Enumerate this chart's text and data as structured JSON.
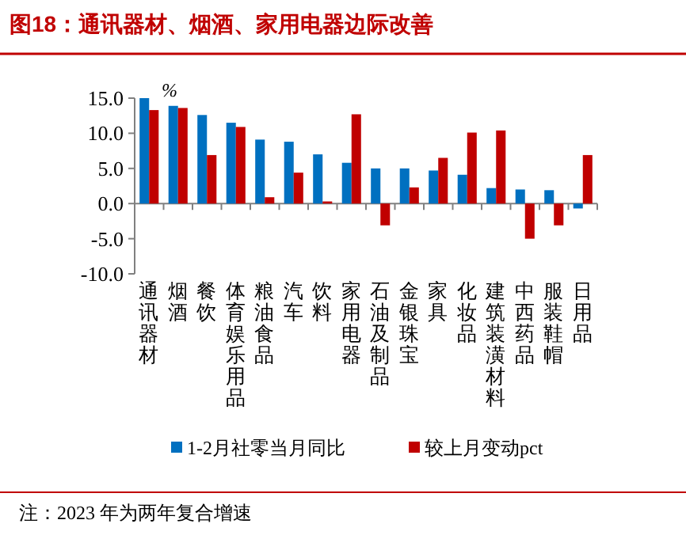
{
  "chart_data": {
    "type": "bar",
    "title": "图18：通讯器材、烟酒、家用电器边际改善",
    "ylabel": "%",
    "categories": [
      "通讯器材",
      "烟酒",
      "餐饮",
      "体育娱乐用品",
      "粮油食品",
      "汽车",
      "饮料",
      "家用电器",
      "石油及制品",
      "金银珠宝",
      "家具",
      "化妆品",
      "建筑装潢材料",
      "中西药品",
      "服装鞋帽",
      "日用品"
    ],
    "series": [
      {
        "name": "1-2月社零当月同比",
        "color": "#0070c0",
        "values": [
          15.0,
          13.9,
          12.6,
          11.5,
          9.1,
          8.8,
          7.0,
          5.8,
          5.0,
          5.0,
          4.7,
          4.1,
          2.2,
          2.0,
          1.9,
          -0.7
        ]
      },
      {
        "name": "较上月变动pct",
        "color": "#c00000",
        "values": [
          13.3,
          13.6,
          6.9,
          10.9,
          0.9,
          4.4,
          0.3,
          12.7,
          -3.1,
          2.3,
          6.5,
          10.1,
          10.4,
          -5.0,
          -3.1,
          6.9
        ]
      }
    ],
    "ylim": [
      -10,
      15
    ],
    "yticks": [
      {
        "value": -10,
        "label": "-10.0"
      },
      {
        "value": -5,
        "label": "-5.0"
      },
      {
        "value": 0,
        "label": "0.0"
      },
      {
        "value": 5,
        "label": "5.0"
      },
      {
        "value": 10,
        "label": "10.0"
      },
      {
        "value": 15,
        "label": "15.0"
      }
    ],
    "legend": "bottom",
    "annotations": [
      "注：2023 年为两年复合增速"
    ]
  }
}
